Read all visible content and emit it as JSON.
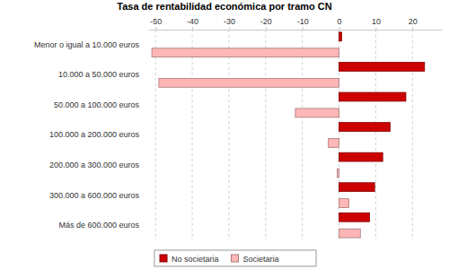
{
  "chart_data": {
    "type": "bar",
    "orientation": "horizontal",
    "title": "Tasa de rentabilidad económica por tramo CN",
    "categories": [
      "Menor o igual a 10.000 euros",
      "10.000 a 50.000 euros",
      "50.000 a 100.000 euros",
      "100.000 a 200.000 euros",
      "200.000 a 300.000 euros",
      "300.000 a 600.000 euros",
      "Más de 600.000 euros"
    ],
    "series": [
      {
        "name": "No societaria",
        "color": "#cc0000",
        "values": [
          0.7,
          23.3,
          18.2,
          13.9,
          11.9,
          9.7,
          8.3
        ]
      },
      {
        "name": "Societaria",
        "color": "#ffb6b6",
        "values": [
          -51.0,
          -49.1,
          -11.9,
          -2.9,
          -0.5,
          2.7,
          5.8
        ]
      }
    ],
    "xlim": [
      -52,
      28
    ],
    "xticks": [
      -50,
      -40,
      -30,
      -20,
      -10,
      0,
      10,
      20
    ],
    "grid": true,
    "legend": "bottom-left"
  }
}
